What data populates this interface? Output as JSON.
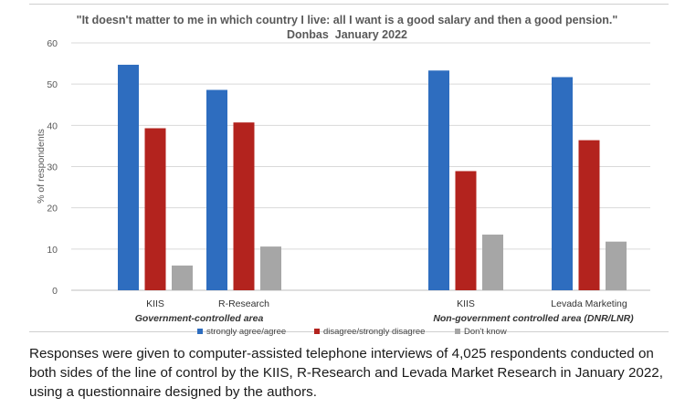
{
  "chart_data": {
    "type": "bar",
    "title": "\"It doesn't matter to me in which country I live: all I want is a good salary and then a good pension.\"",
    "subtitle": "Donbas  January 2022",
    "ylabel": "% of respondents",
    "xlabel": "",
    "ylim": [
      0,
      60
    ],
    "yticks": [
      0,
      10,
      20,
      30,
      40,
      50,
      60
    ],
    "grid": true,
    "legend_position": "bottom",
    "categories": [
      "KIIS",
      "R-Research",
      "KIIS",
      "Levada Marketing"
    ],
    "groups": [
      {
        "label": "Government-controlled area",
        "categories": [
          "KIIS",
          "R-Research"
        ]
      },
      {
        "label": "Non-government controlled area (DNR/LNR)",
        "categories": [
          "KIIS",
          "Levada Marketing"
        ]
      }
    ],
    "series": [
      {
        "name": "strongly agree/agree",
        "color": "#2e6dbf",
        "values": [
          54.7,
          48.6,
          53.3,
          51.7
        ]
      },
      {
        "name": "disagree/strongly disagree",
        "color": "#b3231e",
        "values": [
          39.3,
          40.7,
          28.9,
          36.4
        ]
      },
      {
        "name": "Don't know",
        "color": "#a6a6a6",
        "values": [
          6.0,
          10.6,
          13.5,
          11.8
        ]
      }
    ]
  },
  "caption": "Responses were given to computer-assisted telephone interviews of 4,025 respondents conducted on both sides of the line of control by the KIIS, R-Research and Levada Market Research in January 2022, using a questionnaire designed by the authors."
}
